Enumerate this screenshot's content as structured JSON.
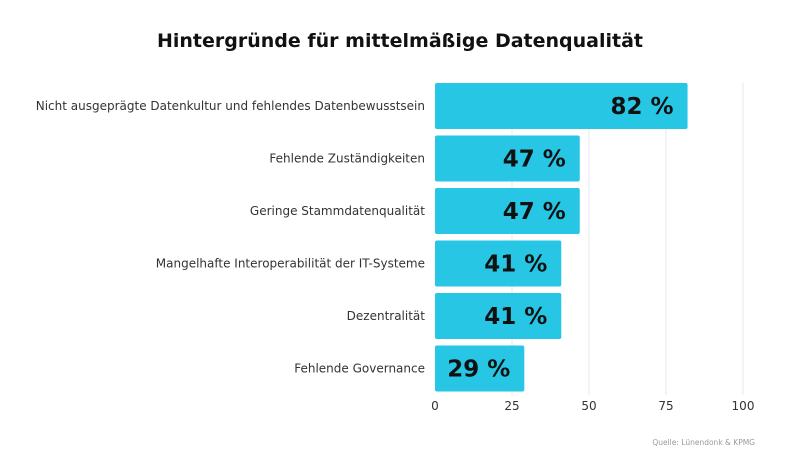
{
  "chart_data": {
    "type": "bar",
    "orientation": "horizontal",
    "title": "Hintergründe für mittelmäßige Datenqualität",
    "categories": [
      "Nicht ausgeprägte Datenkultur und fehlendes Datenbewusstsein",
      "Fehlende Zuständigkeiten",
      "Geringe Stammdatenqualität",
      "Mangelhafte Interoperabilität der IT-Systeme",
      "Dezentralität",
      "Fehlende Governance"
    ],
    "values": [
      82,
      47,
      47,
      41,
      41,
      29
    ],
    "value_labels": [
      "82 %",
      "47 %",
      "47 %",
      "41 %",
      "41 %",
      "29 %"
    ],
    "xlim": [
      0,
      100
    ],
    "xticks": [
      0,
      25,
      50,
      75,
      100
    ],
    "grid": true,
    "color": "#26c6e4",
    "source": "Quelle: Lünendonk & KPMG"
  }
}
